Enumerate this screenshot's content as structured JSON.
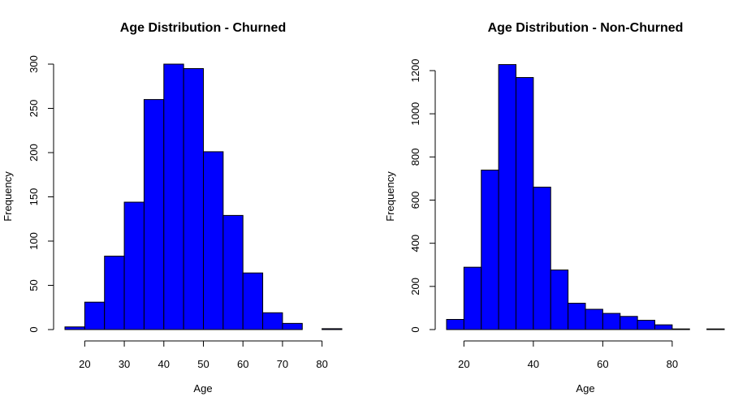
{
  "chart_data": [
    {
      "type": "bar",
      "title": "Age Distribution - Churned",
      "xlabel": "Age",
      "ylabel": "Frequency",
      "bar_color": "#0000ff",
      "bin_edges": [
        15,
        20,
        25,
        30,
        35,
        40,
        45,
        50,
        55,
        60,
        65,
        70,
        75,
        80,
        85
      ],
      "values": [
        3,
        31,
        83,
        144,
        260,
        300,
        295,
        201,
        129,
        64,
        19,
        7,
        0,
        1
      ],
      "xlim": [
        15,
        85
      ],
      "ylim": [
        0,
        300
      ],
      "xticks": [
        20,
        30,
        40,
        50,
        60,
        70,
        80
      ],
      "yticks": [
        0,
        50,
        100,
        150,
        200,
        250,
        300
      ],
      "grid": false
    },
    {
      "type": "bar",
      "title": "Age Distribution - Non-Churned",
      "xlabel": "Age",
      "ylabel": "Frequency",
      "bar_color": "#0000ff",
      "bin_edges": [
        15,
        20,
        25,
        30,
        35,
        40,
        45,
        50,
        55,
        60,
        65,
        70,
        75,
        80,
        85,
        90,
        95
      ],
      "values": [
        47,
        289,
        739,
        1228,
        1168,
        660,
        276,
        122,
        94,
        75,
        61,
        43,
        22,
        3,
        0,
        3
      ],
      "xlim": [
        15,
        95
      ],
      "ylim": [
        0,
        1200
      ],
      "xticks": [
        20,
        40,
        60,
        80
      ],
      "yticks": [
        0,
        200,
        400,
        600,
        800,
        1000,
        1200
      ],
      "grid": false
    }
  ]
}
